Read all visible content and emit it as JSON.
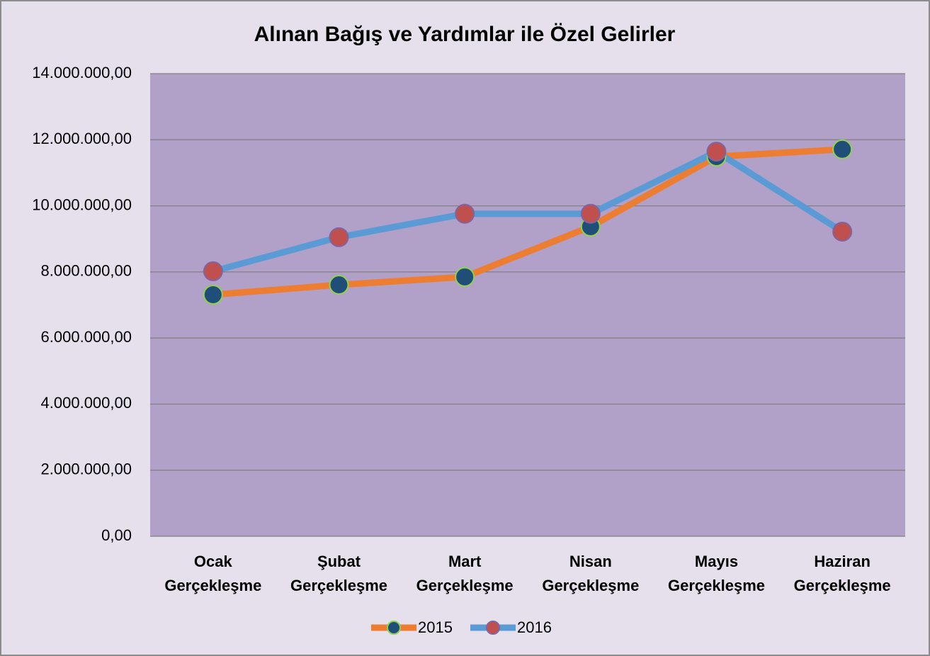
{
  "chart_data": {
    "type": "line",
    "title": "Alınan Bağış ve Yardımlar ile Özel Gelirler",
    "categories": [
      "Ocak Gerçekleşme",
      "Şubat Gerçekleşme",
      "Mart Gerçekleşme",
      "Nisan Gerçekleşme",
      "Mayıs Gerçekleşme",
      "Haziran Gerçekleşme"
    ],
    "series": [
      {
        "name": "2015",
        "color": "#ed7d31",
        "marker_color": "#1f4e79",
        "marker_edge": "#92d050",
        "values": [
          7310000,
          7610000,
          7850000,
          9370000,
          11490000,
          11710000
        ]
      },
      {
        "name": "2016",
        "color": "#5b9bd5",
        "marker_color": "#c0504d",
        "marker_edge": "#8064a2",
        "values": [
          8020000,
          9050000,
          9760000,
          9760000,
          11640000,
          9220000
        ]
      }
    ],
    "ylim": [
      0,
      14000000
    ],
    "yticks": [
      {
        "value": 0,
        "label": "0,00"
      },
      {
        "value": 2000000,
        "label": "2.000.000,00"
      },
      {
        "value": 4000000,
        "label": "4.000.000,00"
      },
      {
        "value": 6000000,
        "label": "6.000.000,00"
      },
      {
        "value": 8000000,
        "label": "8.000.000,00"
      },
      {
        "value": 10000000,
        "label": "10.000.000,00"
      },
      {
        "value": 12000000,
        "label": "12.000.000,00"
      },
      {
        "value": 14000000,
        "label": "14.000.000,00"
      }
    ],
    "grid": true,
    "legend": "bottom"
  }
}
